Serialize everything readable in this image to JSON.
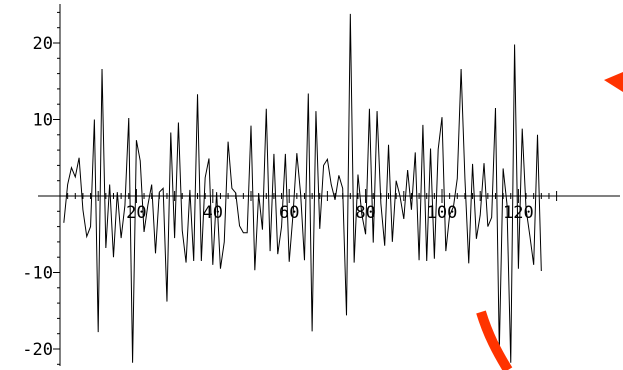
{
  "chart_data": {
    "type": "line",
    "title": "",
    "xlabel": "",
    "ylabel": "",
    "xlim": [
      0,
      130
    ],
    "ylim": [
      -23,
      25
    ],
    "grid": false,
    "x_ticks": [
      20,
      40,
      60,
      80,
      100,
      120
    ],
    "x_tick_labels": [
      "20",
      "40",
      "60",
      "80",
      "100",
      "120"
    ],
    "y_ticks": [
      -20,
      -10,
      10,
      20
    ],
    "y_tick_labels": [
      "-20",
      "-10",
      "10",
      "20"
    ],
    "line_color": "#000000",
    "annotation_color": "#ff3300",
    "series": [
      {
        "values": [
          -3.5,
          1.5,
          3.7,
          2.5,
          5.0,
          -1.8,
          -5.3,
          -4.0,
          10.0,
          -17.8,
          16.6,
          -6.8,
          1.5,
          -8.0,
          0.5,
          -5.5,
          -1.2,
          10.2,
          -21.8,
          7.3,
          4.6,
          -4.7,
          -1.2,
          1.5,
          -7.5,
          0.5,
          1.0,
          -13.8,
          8.3,
          -5.5,
          9.6,
          -4.5,
          -8.7,
          0.8,
          -8.5,
          13.3,
          -8.5,
          2.4,
          4.9,
          -9.0,
          0.5,
          -9.5,
          -6.0,
          7.1,
          1.0,
          0.4,
          -3.9,
          -4.8,
          -4.8,
          9.2,
          -9.7,
          0.3,
          -4.4,
          11.4,
          -7.2,
          5.5,
          -7.6,
          -4.0,
          5.5,
          -8.6,
          -2.4,
          5.6,
          0.2,
          -8.4,
          13.4,
          -17.7,
          11.1,
          -4.3,
          4.0,
          4.8,
          1.5,
          -0.5,
          2.7,
          1.0,
          -15.6,
          23.8,
          -8.7,
          2.8,
          -2.4,
          -5.0,
          11.4,
          -6.1,
          11.1,
          -1.0,
          -6.5,
          6.7,
          -6.0,
          2.0,
          0.0,
          -3.0,
          3.4,
          -1.8,
          5.7,
          -8.4,
          9.3,
          -8.5,
          6.2,
          -8.2,
          6.1,
          10.3,
          -7.2,
          -2.5,
          -1.4,
          2.3,
          16.6,
          2.3,
          -8.8,
          4.2,
          -5.6,
          -2.5,
          4.3,
          -4.0,
          -2.8,
          11.5,
          -20.2,
          3.6,
          -1.0,
          -21.8,
          19.8,
          -9.5,
          8.8,
          -1.7,
          -5.2,
          -9.0,
          8.0,
          -9.8
        ]
      }
    ]
  }
}
